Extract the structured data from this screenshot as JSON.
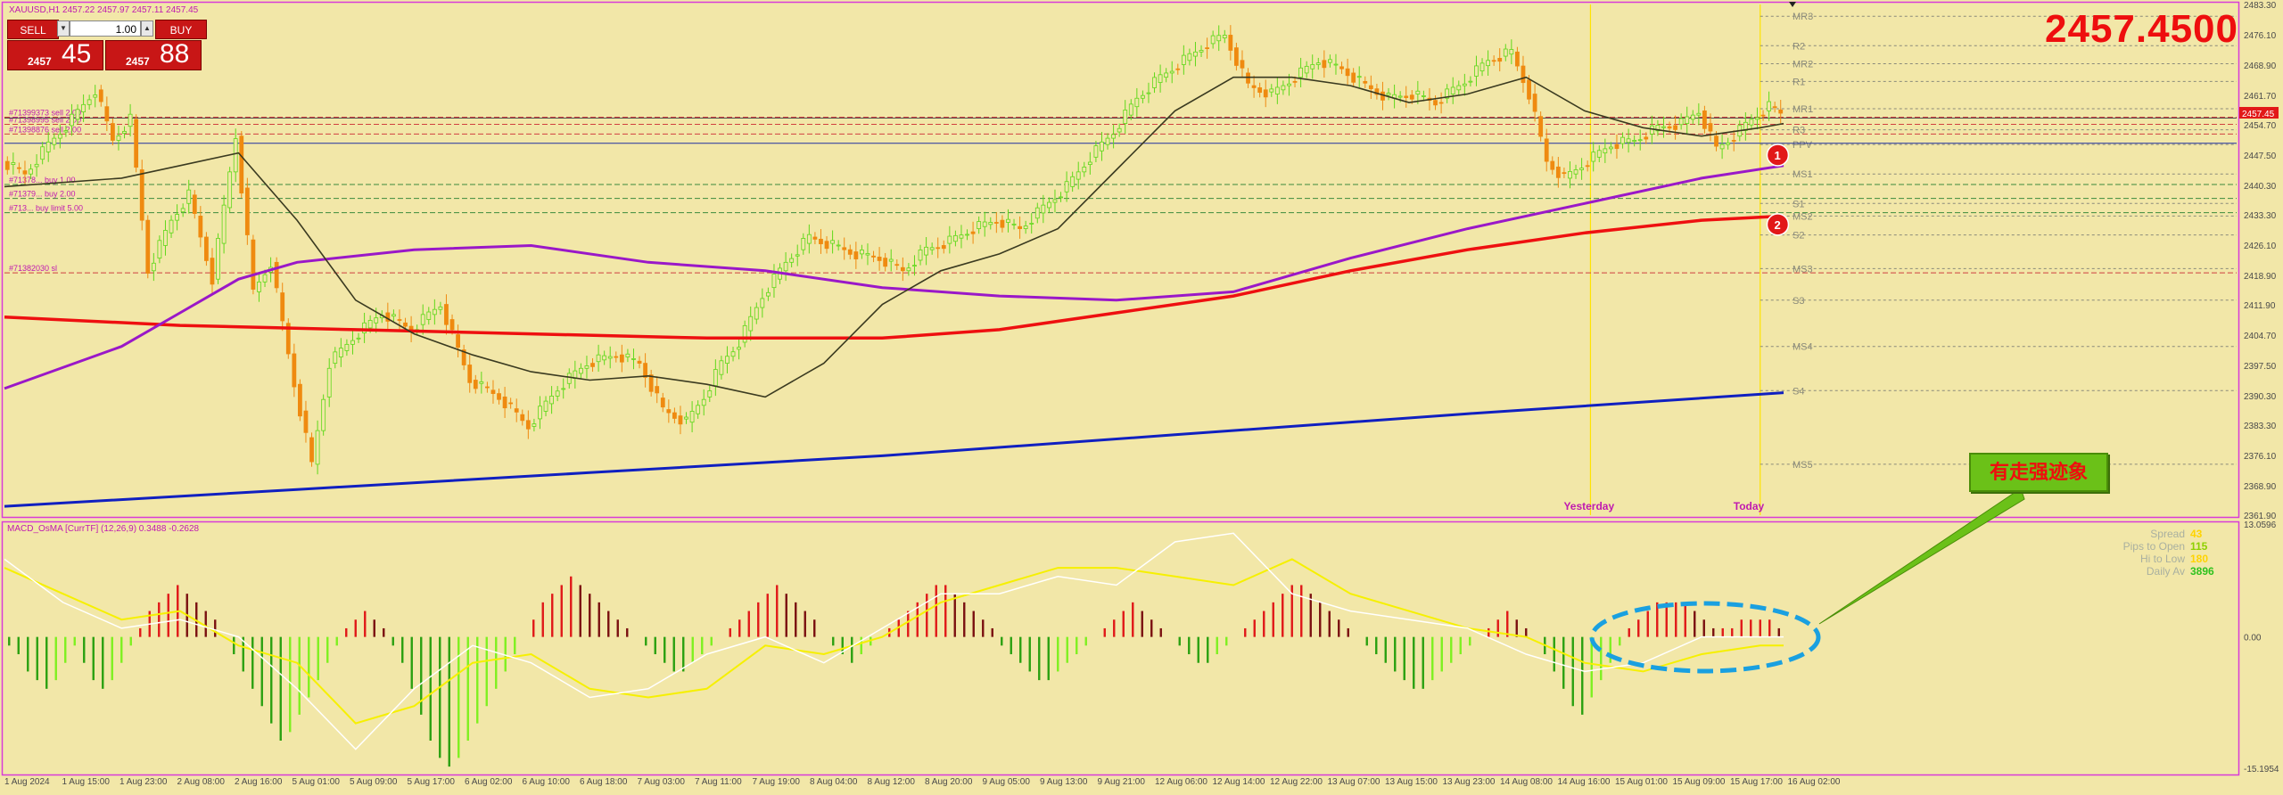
{
  "header": {
    "symbol_info": "XAUUSD,H1  2457.22 2457.97 2457.11 2457.45",
    "big_price": "2457.4500"
  },
  "trade_panel": {
    "sell_label": "SELL",
    "buy_label": "BUY",
    "lot": "1.00",
    "bid_small": "2457",
    "bid_big": "45",
    "ask_small": "2457",
    "ask_big": "88"
  },
  "indicator": {
    "title": "MACD_OsMA [CurrTF] (12,26,9) 0.3488 -0.2628"
  },
  "annotation": {
    "text": "有走强迹象"
  },
  "stats": [
    {
      "label": "Spread",
      "value": "43",
      "color": "#ffd400"
    },
    {
      "label": "Pips to Open",
      "value": "115",
      "color": "#8ed000"
    },
    {
      "label": "Hi to Low",
      "value": "180",
      "color": "#ffd400"
    },
    {
      "label": "Daily Av",
      "value": "3896",
      "color": "#2ec21d"
    }
  ],
  "chart_data": [
    {
      "type": "candlestick",
      "symbol": "XAUUSD",
      "timeframe": "H1",
      "y_range": [
        2361.9,
        2483.3
      ],
      "y_ticks": [
        "2483.30",
        "2476.10",
        "2468.90",
        "2461.70",
        "2454.70",
        "2447.50",
        "2440.30",
        "2433.30",
        "2426.10",
        "2418.90",
        "2411.90",
        "2404.70",
        "2397.50",
        "2390.30",
        "2383.30",
        "2376.10",
        "2368.90",
        "2361.90"
      ],
      "current_price": 2457.45,
      "current_price_label": "2457.45",
      "x_labels": [
        "1 Aug 2024",
        "1 Aug 15:00",
        "1 Aug 23:00",
        "2 Aug 08:00",
        "2 Aug 16:00",
        "5 Aug 01:00",
        "5 Aug 09:00",
        "5 Aug 17:00",
        "6 Aug 02:00",
        "6 Aug 10:00",
        "6 Aug 18:00",
        "7 Aug 03:00",
        "7 Aug 11:00",
        "7 Aug 19:00",
        "8 Aug 04:00",
        "8 Aug 12:00",
        "8 Aug 20:00",
        "9 Aug 05:00",
        "9 Aug 13:00",
        "9 Aug 21:00",
        "12 Aug 06:00",
        "12 Aug 14:00",
        "12 Aug 22:00",
        "13 Aug 07:00",
        "13 Aug 15:00",
        "13 Aug 23:00",
        "14 Aug 08:00",
        "14 Aug 16:00",
        "15 Aug 01:00",
        "15 Aug 09:00",
        "15 Aug 17:00",
        "16 Aug 02:00"
      ],
      "close_path": [
        [
          0,
          2446
        ],
        [
          8,
          2443
        ],
        [
          16,
          2450
        ],
        [
          24,
          2456
        ],
        [
          32,
          2463
        ],
        [
          38,
          2451
        ],
        [
          44,
          2456
        ],
        [
          50,
          2420
        ],
        [
          58,
          2432
        ],
        [
          64,
          2438
        ],
        [
          72,
          2418
        ],
        [
          80,
          2452
        ],
        [
          86,
          2415
        ],
        [
          92,
          2422
        ],
        [
          100,
          2393
        ],
        [
          106,
          2374
        ],
        [
          112,
          2398
        ],
        [
          120,
          2404
        ],
        [
          130,
          2410
        ],
        [
          140,
          2406
        ],
        [
          150,
          2412
        ],
        [
          160,
          2394
        ],
        [
          170,
          2390
        ],
        [
          180,
          2383
        ],
        [
          190,
          2392
        ],
        [
          200,
          2398
        ],
        [
          210,
          2400
        ],
        [
          218,
          2398
        ],
        [
          226,
          2387
        ],
        [
          234,
          2384
        ],
        [
          240,
          2390
        ],
        [
          246,
          2398
        ],
        [
          252,
          2403
        ],
        [
          260,
          2414
        ],
        [
          268,
          2422
        ],
        [
          276,
          2428
        ],
        [
          284,
          2426
        ],
        [
          292,
          2424
        ],
        [
          300,
          2423
        ],
        [
          308,
          2420
        ],
        [
          316,
          2425
        ],
        [
          324,
          2427
        ],
        [
          332,
          2430
        ],
        [
          340,
          2432
        ],
        [
          348,
          2430
        ],
        [
          356,
          2435
        ],
        [
          364,
          2440
        ],
        [
          372,
          2447
        ],
        [
          380,
          2453
        ],
        [
          388,
          2461
        ],
        [
          396,
          2466
        ],
        [
          404,
          2470
        ],
        [
          412,
          2474
        ],
        [
          418,
          2476
        ],
        [
          426,
          2464
        ],
        [
          434,
          2462
        ],
        [
          442,
          2466
        ],
        [
          450,
          2470
        ],
        [
          458,
          2468
        ],
        [
          466,
          2464
        ],
        [
          474,
          2461
        ],
        [
          482,
          2462
        ],
        [
          490,
          2460
        ],
        [
          500,
          2465
        ],
        [
          508,
          2470
        ],
        [
          516,
          2472
        ],
        [
          522,
          2462
        ],
        [
          528,
          2446
        ],
        [
          534,
          2442
        ],
        [
          542,
          2446
        ],
        [
          550,
          2450
        ],
        [
          558,
          2451
        ],
        [
          566,
          2454
        ],
        [
          574,
          2455
        ],
        [
          580,
          2458
        ],
        [
          586,
          2449
        ],
        [
          592,
          2452
        ],
        [
          598,
          2456
        ],
        [
          604,
          2459
        ],
        [
          608,
          2457.45
        ]
      ],
      "ma_green": [
        [
          0,
          2440
        ],
        [
          40,
          2442
        ],
        [
          60,
          2445
        ],
        [
          80,
          2448
        ],
        [
          100,
          2432
        ],
        [
          120,
          2413
        ],
        [
          140,
          2405
        ],
        [
          160,
          2400
        ],
        [
          180,
          2396
        ],
        [
          200,
          2394
        ],
        [
          220,
          2395
        ],
        [
          240,
          2393
        ],
        [
          260,
          2390
        ],
        [
          280,
          2398
        ],
        [
          300,
          2412
        ],
        [
          320,
          2420
        ],
        [
          340,
          2424
        ],
        [
          360,
          2430
        ],
        [
          380,
          2444
        ],
        [
          400,
          2458
        ],
        [
          420,
          2466
        ],
        [
          440,
          2466
        ],
        [
          460,
          2464
        ],
        [
          480,
          2460
        ],
        [
          500,
          2462
        ],
        [
          520,
          2466
        ],
        [
          540,
          2458
        ],
        [
          560,
          2454
        ],
        [
          580,
          2452
        ],
        [
          600,
          2454
        ],
        [
          608,
          2455
        ]
      ],
      "ma_purple": [
        [
          0,
          2392
        ],
        [
          40,
          2402
        ],
        [
          60,
          2410
        ],
        [
          80,
          2418
        ],
        [
          100,
          2422
        ],
        [
          140,
          2425
        ],
        [
          180,
          2426
        ],
        [
          220,
          2422
        ],
        [
          260,
          2420
        ],
        [
          300,
          2416
        ],
        [
          340,
          2414
        ],
        [
          380,
          2413
        ],
        [
          420,
          2415
        ],
        [
          460,
          2423
        ],
        [
          500,
          2430
        ],
        [
          540,
          2436
        ],
        [
          580,
          2442
        ],
        [
          608,
          2445
        ]
      ],
      "ma_red": [
        [
          0,
          2409
        ],
        [
          60,
          2407
        ],
        [
          120,
          2406
        ],
        [
          180,
          2405
        ],
        [
          240,
          2404
        ],
        [
          300,
          2404
        ],
        [
          340,
          2406
        ],
        [
          380,
          2410
        ],
        [
          420,
          2414
        ],
        [
          460,
          2420
        ],
        [
          500,
          2425
        ],
        [
          540,
          2429
        ],
        [
          580,
          2432
        ],
        [
          608,
          2433
        ]
      ],
      "ma_blue": [
        [
          0,
          2364
        ],
        [
          100,
          2368
        ],
        [
          200,
          2372
        ],
        [
          300,
          2376
        ],
        [
          400,
          2381
        ],
        [
          500,
          2386
        ],
        [
          608,
          2391
        ]
      ],
      "markers": [
        {
          "label": "1",
          "y": 2447.5
        },
        {
          "label": "2",
          "y": 2431
        }
      ],
      "pivots": [
        {
          "label": "MR3",
          "y": 2480.5
        },
        {
          "label": "R2",
          "y": 2473.5
        },
        {
          "label": "MR2",
          "y": 2469.2
        },
        {
          "label": "R1",
          "y": 2465
        },
        {
          "label": "MR1",
          "y": 2458.5
        },
        {
          "label": "R3",
          "y": 2453.5
        },
        {
          "label": "PPV",
          "y": 2450
        },
        {
          "label": "MS1",
          "y": 2443
        },
        {
          "label": "S1",
          "y": 2436
        },
        {
          "label": "MS2",
          "y": 2433
        },
        {
          "label": "S2",
          "y": 2428.5
        },
        {
          "label": "MS3",
          "y": 2420.5
        },
        {
          "label": "S3",
          "y": 2413
        },
        {
          "label": "MS4",
          "y": 2402
        },
        {
          "label": "S4",
          "y": 2391.5
        },
        {
          "label": "MS5",
          "y": 2374
        }
      ],
      "order_lines": [
        {
          "label": "#71399373 sell 2.00",
          "y": 2456.5,
          "color": "#d04040"
        },
        {
          "label": "#71398995 sell 2.00",
          "y": 2454.8,
          "color": "#d04040"
        },
        {
          "label": "#71398876 sell 2.00",
          "y": 2452.5,
          "color": "#d04040"
        },
        {
          "label": "#71378... buy 1.00",
          "y": 2440.5,
          "color": "#3c8a3c"
        },
        {
          "label": "#71379... buy 2.00",
          "y": 2437.2,
          "color": "#3c8a3c"
        },
        {
          "label": "#713... buy limit 5.00",
          "y": 2433.8,
          "color": "#3c8a3c"
        },
        {
          "label": "#71382030 sl",
          "y": 2419.5,
          "color": "#d04040"
        }
      ],
      "day_separators": [
        {
          "label": "Yesterday",
          "x": 542
        },
        {
          "label": "Today",
          "x": 600
        }
      ]
    },
    {
      "type": "bar",
      "name": "MACD_OsMA",
      "y_range": [
        -15.1954,
        13.0596
      ],
      "y_ticks": [
        "13.0596",
        "0.00",
        "-15.1954"
      ],
      "histogram": [
        -1,
        -2,
        -4,
        -5,
        -6,
        -5,
        -3,
        -1,
        -3,
        -5,
        -6,
        -5,
        -3,
        -1,
        1,
        3,
        4,
        5,
        6,
        5,
        4,
        3,
        2,
        0,
        -2,
        -4,
        -6,
        -8,
        -10,
        -12,
        -11,
        -9,
        -7,
        -5,
        -3,
        -1,
        1,
        2,
        3,
        2,
        1,
        -1,
        -3,
        -6,
        -9,
        -12,
        -14,
        -15,
        -14,
        -12,
        -10,
        -8,
        -6,
        -4,
        -2,
        0,
        2,
        4,
        5,
        6,
        7,
        6,
        5,
        4,
        3,
        2,
        1,
        0,
        -1,
        -2,
        -3,
        -4,
        -4,
        -3,
        -2,
        -1,
        0,
        1,
        2,
        3,
        4,
        5,
        6,
        5,
        4,
        3,
        2,
        0,
        -1,
        -2,
        -3,
        -2,
        -1,
        0,
        1,
        2,
        3,
        4,
        5,
        6,
        6,
        5,
        4,
        3,
        2,
        1,
        -1,
        -2,
        -3,
        -4,
        -5,
        -5,
        -4,
        -3,
        -2,
        -1,
        0,
        1,
        2,
        3,
        4,
        3,
        2,
        1,
        0,
        -1,
        -2,
        -3,
        -3,
        -2,
        -1,
        0,
        1,
        2,
        3,
        4,
        5,
        6,
        6,
        5,
        4,
        3,
        2,
        1,
        0,
        -1,
        -2,
        -3,
        -4,
        -5,
        -6,
        -6,
        -5,
        -4,
        -3,
        -2,
        -1,
        0,
        1,
        2,
        3,
        2,
        1,
        0,
        -2,
        -4,
        -6,
        -8,
        -9,
        -7,
        -5,
        -3,
        -1,
        1,
        2,
        3,
        4,
        4,
        4,
        4,
        3,
        2,
        1,
        1,
        1,
        2,
        2,
        2,
        2,
        1
      ],
      "signal_yellow": [
        [
          0,
          8
        ],
        [
          20,
          5
        ],
        [
          40,
          2
        ],
        [
          60,
          3
        ],
        [
          80,
          -1
        ],
        [
          100,
          -3
        ],
        [
          120,
          -10
        ],
        [
          140,
          -8
        ],
        [
          160,
          -3
        ],
        [
          180,
          -2
        ],
        [
          200,
          -6
        ],
        [
          220,
          -7
        ],
        [
          240,
          -6
        ],
        [
          260,
          -1
        ],
        [
          280,
          -2
        ],
        [
          300,
          0
        ],
        [
          320,
          4
        ],
        [
          340,
          6
        ],
        [
          360,
          8
        ],
        [
          380,
          8
        ],
        [
          400,
          7
        ],
        [
          420,
          6
        ],
        [
          440,
          9
        ],
        [
          460,
          5
        ],
        [
          480,
          3
        ],
        [
          500,
          1
        ],
        [
          520,
          0
        ],
        [
          540,
          -3
        ],
        [
          560,
          -4
        ],
        [
          580,
          -2
        ],
        [
          600,
          -1
        ],
        [
          608,
          -1
        ]
      ],
      "line_white": [
        [
          0,
          9
        ],
        [
          20,
          4
        ],
        [
          40,
          1
        ],
        [
          60,
          2
        ],
        [
          80,
          0
        ],
        [
          100,
          -6
        ],
        [
          120,
          -13
        ],
        [
          140,
          -6
        ],
        [
          160,
          -1
        ],
        [
          180,
          -3
        ],
        [
          200,
          -7
        ],
        [
          220,
          -6
        ],
        [
          240,
          -2
        ],
        [
          260,
          0
        ],
        [
          280,
          -3
        ],
        [
          300,
          1
        ],
        [
          320,
          5
        ],
        [
          340,
          5
        ],
        [
          360,
          7
        ],
        [
          380,
          6
        ],
        [
          400,
          11
        ],
        [
          420,
          12
        ],
        [
          440,
          5
        ],
        [
          460,
          3
        ],
        [
          480,
          2
        ],
        [
          500,
          1
        ],
        [
          520,
          -2
        ],
        [
          540,
          -4
        ],
        [
          560,
          -3
        ],
        [
          580,
          0
        ],
        [
          600,
          0
        ],
        [
          608,
          0
        ]
      ]
    }
  ]
}
